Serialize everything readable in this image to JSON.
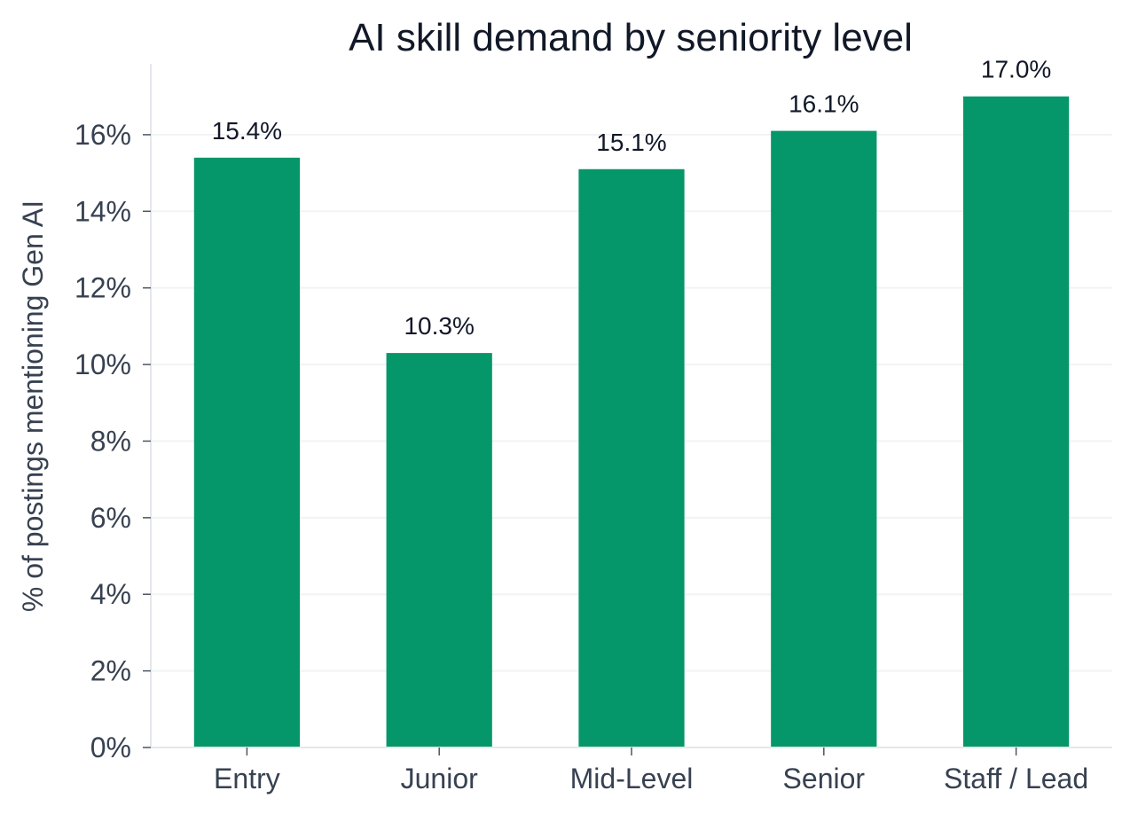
{
  "chart_data": {
    "type": "bar",
    "title": "AI skill demand by seniority level",
    "xlabel": "",
    "ylabel": "% of postings mentioning Gen AI",
    "categories": [
      "Entry",
      "Junior",
      "Mid-Level",
      "Senior",
      "Staff / Lead"
    ],
    "values": [
      15.4,
      10.3,
      15.1,
      16.1,
      17.0
    ],
    "data_labels": [
      "15.4%",
      "10.3%",
      "15.1%",
      "16.1%",
      "17.0%"
    ],
    "y_ticks": [
      0,
      2,
      4,
      6,
      8,
      10,
      12,
      14,
      16
    ],
    "y_tick_labels": [
      "0%",
      "2%",
      "4%",
      "6%",
      "8%",
      "10%",
      "12%",
      "14%",
      "16%"
    ],
    "ylim": [
      0,
      17.85
    ],
    "grid": "horizontal",
    "bar_color": "#059669",
    "grid_color": "#f1f3f5",
    "axis_color": "#e5e7eb"
  }
}
